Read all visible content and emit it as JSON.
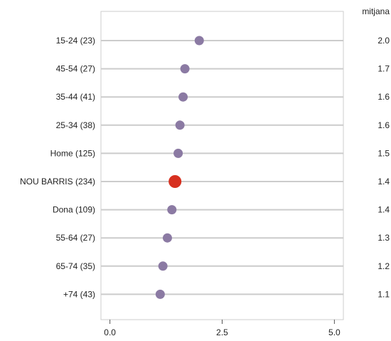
{
  "chart_data": {
    "type": "scatter",
    "value_column_header": "mitjana",
    "categories": [
      "15-24 (23)",
      "45-54 (27)",
      "35-44 (41)",
      "25-34 (38)",
      "Home (125)",
      "NOU BARRIS (234)",
      "Dona (109)",
      "55-64 (27)",
      "65-74 (35)",
      "+74 (43)"
    ],
    "values": [
      1.99,
      1.67,
      1.63,
      1.56,
      1.52,
      1.45,
      1.38,
      1.28,
      1.18,
      1.12
    ],
    "value_labels": [
      "2.0",
      "1.7",
      "1.6",
      "1.6",
      "1.5",
      "1.4",
      "1.4",
      "1.3",
      "1.2",
      "1.1"
    ],
    "highlight_category": "NOU BARRIS (234)",
    "xlim": [
      -0.2,
      5.2
    ],
    "xticks": [
      0,
      2.5,
      5
    ],
    "xtick_labels": [
      "0.0",
      "2.5",
      "5.0"
    ],
    "grid": true,
    "colors": {
      "point": "#8b7aa3",
      "highlight": "#d7301f",
      "grid": "#cccccc",
      "frame": "#cccccc"
    }
  }
}
